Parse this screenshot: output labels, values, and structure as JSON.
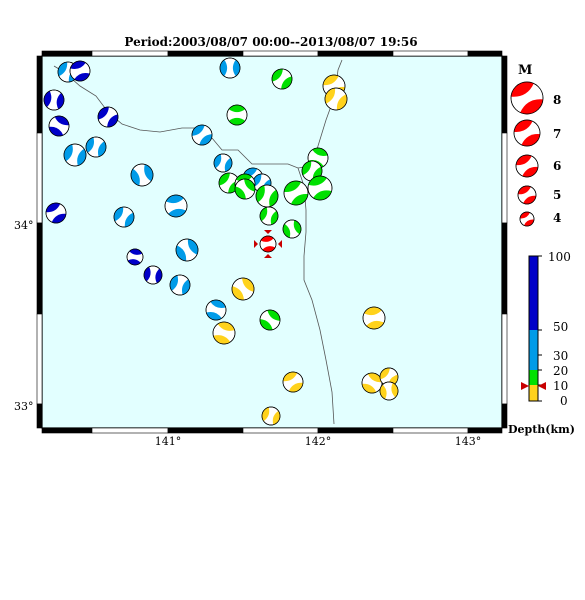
{
  "title": "Period:2003/08/07 00:00--2013/08/07 19:56",
  "map": {
    "lon_range": [
      140.17,
      143.2
    ],
    "lat_range": [
      32.9,
      33.9
    ],
    "lon_ticks": [
      "141°",
      "142°",
      "143°"
    ],
    "lat_ticks": [
      "33°",
      "34°"
    ],
    "background_color": "#e2ffff",
    "coastline_color": "#555555"
  },
  "legend": {
    "magnitude_title": "M",
    "magnitudes": [
      "8",
      "7",
      "6",
      "5",
      "4"
    ],
    "depth_title": "Depth(km)",
    "depth_ticks": [
      "100",
      "50",
      "30",
      "20",
      "10",
      "0"
    ],
    "depth_colors": {
      "0-10": "#ffd21c",
      "10-20": "#00e000",
      "20-50": "#009be8",
      "50-100": "#0000c8"
    },
    "latest_event_color": "#ff0000"
  },
  "events": [
    {
      "label": "e1",
      "color": "#009be8"
    },
    {
      "label": "e2",
      "color": "#0000c8"
    },
    {
      "label": "e3",
      "color": "#0000c8"
    },
    {
      "label": "e4",
      "color": "#0000c8"
    },
    {
      "label": "e5",
      "color": "#0000c8"
    },
    {
      "label": "e6",
      "color": "#009be8"
    },
    {
      "label": "e7",
      "color": "#009be8"
    },
    {
      "label": "e8",
      "color": "#009be8"
    },
    {
      "label": "e9",
      "color": "#009be8"
    },
    {
      "label": "e10",
      "color": "#009be8"
    },
    {
      "label": "e11",
      "color": "#009be8"
    },
    {
      "label": "e12",
      "color": "#0000c8"
    },
    {
      "label": "e13",
      "color": "#009be8"
    },
    {
      "label": "e14",
      "color": "#009be8"
    },
    {
      "label": "e15",
      "color": "#009be8"
    },
    {
      "label": "e16",
      "color": "#009be8"
    },
    {
      "label": "e17",
      "color": "#009be8"
    },
    {
      "label": "e18",
      "color": "#0000c8"
    },
    {
      "label": "e19",
      "color": "#0000c8"
    },
    {
      "label": "e20",
      "color": "#009be8"
    },
    {
      "label": "e21",
      "color": "#009be8"
    },
    {
      "label": "e22",
      "color": "#00e000"
    },
    {
      "label": "e23",
      "color": "#00e000"
    },
    {
      "label": "e24",
      "color": "#00e000"
    },
    {
      "label": "e25",
      "color": "#00e000"
    },
    {
      "label": "e26",
      "color": "#00e000"
    },
    {
      "label": "e27",
      "color": "#00e000"
    },
    {
      "label": "e28",
      "color": "#00e000"
    },
    {
      "label": "e29",
      "color": "#00e000"
    },
    {
      "label": "e30",
      "color": "#00e000"
    },
    {
      "label": "e31",
      "color": "#00e000"
    },
    {
      "label": "e32",
      "color": "#00e000"
    },
    {
      "label": "e33",
      "color": "#00e000"
    },
    {
      "label": "e34",
      "color": "#00e000"
    },
    {
      "label": "e35",
      "color": "#ffd21c"
    },
    {
      "label": "e36",
      "color": "#ffd21c"
    },
    {
      "label": "e37",
      "color": "#ffd21c"
    },
    {
      "label": "e38",
      "color": "#ffd21c"
    },
    {
      "label": "e39",
      "color": "#ffd21c"
    },
    {
      "label": "e40",
      "color": "#ffd21c"
    },
    {
      "label": "e41",
      "color": "#ffd21c"
    },
    {
      "label": "e42",
      "color": "#ffd21c"
    },
    {
      "label": "e43",
      "color": "#ffd21c"
    },
    {
      "label": "e44",
      "color": "#ffd21c"
    },
    {
      "label": "latest",
      "color": "#ff0000"
    }
  ]
}
